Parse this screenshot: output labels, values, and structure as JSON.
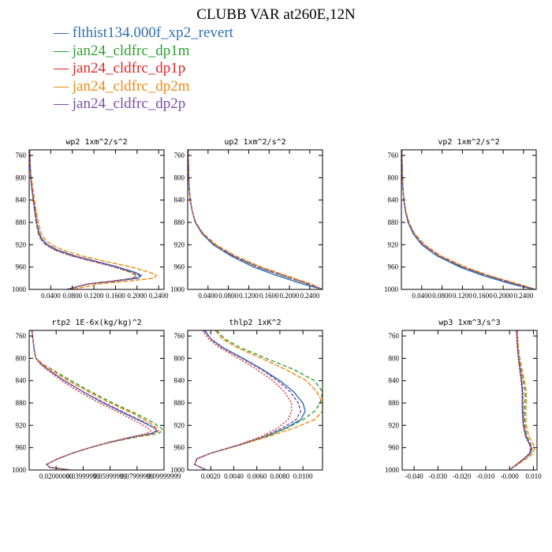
{
  "title": "CLUBB VAR at260E,12N",
  "legend": [
    {
      "label": "flthist134.000f_xp2_revert",
      "color": "#2f6fb0"
    },
    {
      "label": "jan24_cldfrc_dp1m",
      "color": "#2ea02e"
    },
    {
      "label": "jan24_cldfrc_dp1p",
      "color": "#e0262a"
    },
    {
      "label": "jan24_cldfrc_dp2m",
      "color": "#ef8a14"
    },
    {
      "label": "jan24_cldfrc_dp2p",
      "color": "#7b4fa8"
    }
  ],
  "chart_data": [
    {
      "type": "line",
      "title": "wp2  1xm^2/s^2",
      "xlim": [
        0.0,
        0.25
      ],
      "ylim": [
        1000,
        750
      ],
      "yinvert": true,
      "xticks": [
        0.04,
        0.08,
        0.12,
        0.16,
        0.2,
        0.24
      ],
      "xticklabels": [
        "0.0400",
        "0.0800",
        "0.1200",
        "0.1600",
        "0.2000",
        "0.2400"
      ],
      "yticks": [
        760,
        800,
        840,
        880,
        920,
        960,
        1000
      ],
      "y": [
        750,
        780,
        800,
        820,
        840,
        860,
        880,
        900,
        910,
        920,
        930,
        940,
        950,
        960,
        970,
        975,
        980,
        985,
        990,
        1000
      ],
      "series": [
        {
          "x": [
            0.001,
            0.002,
            0.003,
            0.005,
            0.008,
            0.011,
            0.014,
            0.019,
            0.024,
            0.034,
            0.054,
            0.085,
            0.125,
            0.165,
            0.198,
            0.208,
            0.202,
            0.16,
            0.11,
            0.07
          ]
        },
        {
          "x": [
            0.001,
            0.002,
            0.003,
            0.005,
            0.008,
            0.01,
            0.013,
            0.017,
            0.022,
            0.031,
            0.05,
            0.08,
            0.12,
            0.16,
            0.19,
            0.198,
            0.192,
            0.155,
            0.11,
            0.07
          ]
        },
        {
          "x": [
            0.001,
            0.002,
            0.003,
            0.005,
            0.007,
            0.01,
            0.013,
            0.017,
            0.021,
            0.03,
            0.048,
            0.078,
            0.118,
            0.158,
            0.19,
            0.199,
            0.194,
            0.156,
            0.11,
            0.07
          ]
        },
        {
          "x": [
            0.001,
            0.002,
            0.004,
            0.007,
            0.01,
            0.013,
            0.017,
            0.022,
            0.029,
            0.041,
            0.064,
            0.098,
            0.142,
            0.19,
            0.225,
            0.236,
            0.23,
            0.185,
            0.13,
            0.08
          ]
        },
        {
          "x": [
            0.001,
            0.002,
            0.003,
            0.005,
            0.008,
            0.011,
            0.014,
            0.018,
            0.023,
            0.032,
            0.051,
            0.082,
            0.122,
            0.162,
            0.195,
            0.204,
            0.198,
            0.158,
            0.11,
            0.07
          ]
        }
      ]
    },
    {
      "type": "line",
      "title": "up2  1xm^2/s^2",
      "xlim": [
        0.0,
        0.265
      ],
      "ylim": [
        1000,
        750
      ],
      "yinvert": true,
      "xticks": [
        0.04,
        0.08,
        0.12,
        0.16,
        0.2,
        0.24
      ],
      "xticklabels": [
        "0.0400",
        "0.0800",
        "0.1200",
        "0.1600",
        "0.2000",
        "0.2400"
      ],
      "yticks": [
        760,
        800,
        840,
        880,
        920,
        960,
        1000
      ],
      "y": [
        750,
        780,
        800,
        820,
        840,
        860,
        880,
        900,
        920,
        940,
        960,
        975,
        990,
        1000
      ],
      "series": [
        {
          "x": [
            0.001,
            0.0015,
            0.002,
            0.003,
            0.005,
            0.009,
            0.015,
            0.028,
            0.05,
            0.085,
            0.13,
            0.175,
            0.225,
            0.265
          ]
        },
        {
          "x": [
            0.001,
            0.0015,
            0.002,
            0.003,
            0.005,
            0.009,
            0.015,
            0.029,
            0.052,
            0.089,
            0.138,
            0.185,
            0.235,
            0.265
          ]
        },
        {
          "x": [
            0.001,
            0.0015,
            0.002,
            0.003,
            0.005,
            0.009,
            0.016,
            0.03,
            0.054,
            0.091,
            0.14,
            0.188,
            0.238,
            0.265
          ]
        },
        {
          "x": [
            0.001,
            0.0015,
            0.002,
            0.003,
            0.005,
            0.009,
            0.016,
            0.031,
            0.056,
            0.094,
            0.145,
            0.193,
            0.242,
            0.265
          ]
        },
        {
          "x": [
            0.001,
            0.0015,
            0.002,
            0.003,
            0.005,
            0.009,
            0.015,
            0.029,
            0.052,
            0.089,
            0.138,
            0.186,
            0.236,
            0.265
          ]
        }
      ]
    },
    {
      "type": "line",
      "title": "vp2  1xm^2/s^2",
      "xlim": [
        0.0,
        0.265
      ],
      "ylim": [
        1000,
        750
      ],
      "yinvert": true,
      "xticks": [
        0.04,
        0.08,
        0.12,
        0.16,
        0.2,
        0.24
      ],
      "xticklabels": [
        "0.0400",
        "0.0800",
        "0.1200",
        "0.1600",
        "0.2000",
        "0.2400"
      ],
      "yticks": [
        760,
        800,
        840,
        880,
        920,
        960,
        1000
      ],
      "y": [
        750,
        780,
        800,
        820,
        840,
        860,
        880,
        900,
        920,
        940,
        960,
        975,
        990,
        1000
      ],
      "series": [
        {
          "x": [
            0.001,
            0.0015,
            0.002,
            0.003,
            0.005,
            0.008,
            0.013,
            0.023,
            0.04,
            0.07,
            0.115,
            0.16,
            0.215,
            0.26
          ]
        },
        {
          "x": [
            0.001,
            0.0015,
            0.002,
            0.003,
            0.005,
            0.008,
            0.014,
            0.024,
            0.042,
            0.073,
            0.12,
            0.167,
            0.222,
            0.262
          ]
        },
        {
          "x": [
            0.001,
            0.0015,
            0.002,
            0.003,
            0.005,
            0.008,
            0.014,
            0.025,
            0.044,
            0.075,
            0.122,
            0.169,
            0.225,
            0.263
          ]
        },
        {
          "x": [
            0.001,
            0.0015,
            0.002,
            0.003,
            0.005,
            0.009,
            0.015,
            0.026,
            0.046,
            0.078,
            0.126,
            0.173,
            0.229,
            0.265
          ]
        },
        {
          "x": [
            0.001,
            0.0015,
            0.002,
            0.003,
            0.005,
            0.008,
            0.014,
            0.024,
            0.042,
            0.073,
            0.12,
            0.167,
            0.222,
            0.262
          ]
        }
      ]
    },
    {
      "type": "line",
      "title": "rtp2  1E-6x(kg/kg)^2",
      "xlim": [
        0.0,
        0.1
      ],
      "ylim": [
        1000,
        750
      ],
      "yinvert": true,
      "xticks": [
        0.02,
        0.04,
        0.06,
        0.08,
        0.1
      ],
      "xticklabels": [
        "0.02000000",
        "0.03999999",
        "0.05999999",
        "0.07999999",
        "0.09999999"
      ],
      "yticks": [
        760,
        800,
        840,
        880,
        920,
        960,
        1000
      ],
      "y": [
        750,
        770,
        790,
        800,
        810,
        820,
        840,
        860,
        880,
        900,
        915,
        925,
        930,
        935,
        940,
        950,
        960,
        970,
        980,
        990,
        995,
        1000
      ],
      "series": [
        {
          "x": [
            0.002,
            0.003,
            0.004,
            0.005,
            0.009,
            0.014,
            0.026,
            0.04,
            0.055,
            0.072,
            0.085,
            0.093,
            0.0945,
            0.09,
            0.078,
            0.06,
            0.045,
            0.032,
            0.021,
            0.013,
            0.015,
            0.03
          ]
        },
        {
          "x": [
            0.002,
            0.003,
            0.004,
            0.005,
            0.01,
            0.017,
            0.031,
            0.046,
            0.062,
            0.08,
            0.092,
            0.098,
            0.099,
            0.095,
            0.082,
            0.061,
            0.045,
            0.032,
            0.021,
            0.013,
            0.015,
            0.03
          ]
        },
        {
          "x": [
            0.002,
            0.003,
            0.004,
            0.005,
            0.008,
            0.013,
            0.024,
            0.037,
            0.052,
            0.069,
            0.081,
            0.088,
            0.09,
            0.087,
            0.077,
            0.06,
            0.045,
            0.032,
            0.021,
            0.013,
            0.015,
            0.03
          ]
        },
        {
          "x": [
            0.002,
            0.003,
            0.004,
            0.005,
            0.01,
            0.016,
            0.029,
            0.044,
            0.06,
            0.078,
            0.089,
            0.095,
            0.096,
            0.092,
            0.08,
            0.061,
            0.045,
            0.032,
            0.021,
            0.013,
            0.015,
            0.03
          ]
        },
        {
          "x": [
            0.002,
            0.003,
            0.004,
            0.005,
            0.009,
            0.014,
            0.026,
            0.04,
            0.056,
            0.073,
            0.086,
            0.093,
            0.095,
            0.091,
            0.079,
            0.06,
            0.045,
            0.032,
            0.021,
            0.013,
            0.015,
            0.03
          ]
        }
      ]
    },
    {
      "type": "line",
      "title": "thlp2  1xK^2",
      "xlim": [
        0.0,
        0.0117
      ],
      "ylim": [
        1000,
        750
      ],
      "yinvert": true,
      "xticks": [
        0.002,
        0.004,
        0.006,
        0.008,
        0.01
      ],
      "xticklabels": [
        "0.0020",
        "0.0040",
        "0.0060",
        "0.0080",
        "0.0100"
      ],
      "yticks": [
        760,
        800,
        840,
        880,
        920,
        960,
        1000
      ],
      "y": [
        750,
        765,
        780,
        800,
        820,
        840,
        860,
        880,
        895,
        910,
        925,
        940,
        955,
        970,
        980,
        990,
        1000
      ],
      "series": [
        {
          "x": [
            0.0015,
            0.002,
            0.003,
            0.0048,
            0.0065,
            0.008,
            0.0092,
            0.01,
            0.0102,
            0.0098,
            0.0085,
            0.0068,
            0.0045,
            0.002,
            0.0008,
            0.0006,
            0.0016
          ]
        },
        {
          "x": [
            0.0025,
            0.0032,
            0.0045,
            0.0068,
            0.0092,
            0.011,
            0.0117,
            0.0115,
            0.011,
            0.01,
            0.0086,
            0.0068,
            0.0045,
            0.002,
            0.0008,
            0.0006,
            0.0016
          ]
        },
        {
          "x": [
            0.0013,
            0.0018,
            0.0027,
            0.0044,
            0.006,
            0.0074,
            0.0084,
            0.009,
            0.009,
            0.0087,
            0.0078,
            0.0064,
            0.0044,
            0.002,
            0.0008,
            0.0006,
            0.0016
          ]
        },
        {
          "x": [
            0.0024,
            0.003,
            0.0042,
            0.0064,
            0.0085,
            0.0103,
            0.0112,
            0.0117,
            0.0117,
            0.011,
            0.0092,
            0.007,
            0.0046,
            0.002,
            0.0008,
            0.0006,
            0.0016
          ]
        },
        {
          "x": [
            0.0014,
            0.002,
            0.0029,
            0.0047,
            0.0064,
            0.0078,
            0.0089,
            0.0096,
            0.0098,
            0.0094,
            0.0082,
            0.0066,
            0.0045,
            0.002,
            0.0008,
            0.0006,
            0.0016
          ]
        }
      ]
    },
    {
      "type": "line",
      "title": "wp3  1xm^3/s^3",
      "xlim": [
        -0.045,
        0.0115
      ],
      "ylim": [
        1000,
        750
      ],
      "yinvert": true,
      "xticks": [
        -0.04,
        -0.03,
        -0.02,
        -0.01,
        0.0,
        0.01
      ],
      "xticklabels": [
        "-0.040",
        "-0.030",
        "-0.020",
        "-0.010",
        "-0.000",
        "0.010"
      ],
      "yticks": [
        760,
        800,
        840,
        880,
        920,
        960,
        1000
      ],
      "y": [
        750,
        780,
        800,
        820,
        840,
        860,
        880,
        900,
        920,
        940,
        950,
        960,
        970,
        980,
        990,
        1000
      ],
      "series": [
        {
          "x": [
            0.003,
            0.0034,
            0.0038,
            0.0044,
            0.005,
            0.0054,
            0.0054,
            0.0055,
            0.0058,
            0.0068,
            0.008,
            0.009,
            0.0085,
            0.006,
            0.003,
            0.0
          ]
        },
        {
          "x": [
            0.003,
            0.0035,
            0.004,
            0.0048,
            0.0058,
            0.0065,
            0.0064,
            0.0062,
            0.0064,
            0.0072,
            0.0085,
            0.0095,
            0.009,
            0.0062,
            0.003,
            0.0
          ]
        },
        {
          "x": [
            0.0028,
            0.0032,
            0.0036,
            0.0042,
            0.0048,
            0.0052,
            0.0052,
            0.0053,
            0.0057,
            0.0066,
            0.0078,
            0.0088,
            0.0084,
            0.0058,
            0.0028,
            0.0
          ]
        },
        {
          "x": [
            0.0032,
            0.0037,
            0.0043,
            0.0052,
            0.0062,
            0.007,
            0.007,
            0.0068,
            0.007,
            0.008,
            0.0095,
            0.0105,
            0.01,
            0.007,
            0.0035,
            0.0
          ]
        },
        {
          "x": [
            0.003,
            0.0034,
            0.0038,
            0.0045,
            0.0052,
            0.0056,
            0.0056,
            0.0057,
            0.006,
            0.007,
            0.0082,
            0.0092,
            0.0088,
            0.006,
            0.003,
            0.0
          ]
        }
      ]
    }
  ]
}
